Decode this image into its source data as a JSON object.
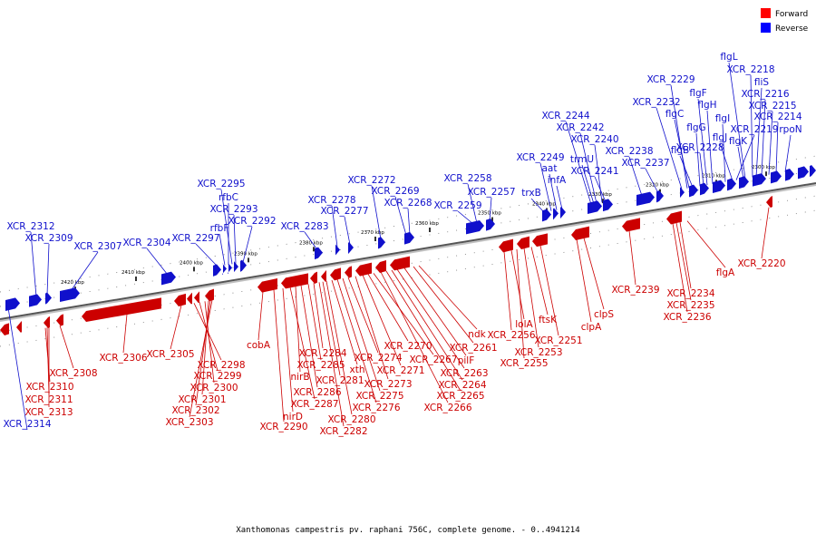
{
  "caption": "Xanthomonas campestris pv. raphani 756C, complete genome. - 0..4941214",
  "legend": {
    "forward": "Forward",
    "reverse": "Reverse",
    "forward_color": "#ff0000",
    "reverse_color": "#0000ff"
  },
  "ticks": [
    "2300 kbp",
    "2310 kbp",
    "2320 kbp",
    "2330 kbp",
    "2340 kbp",
    "2350 kbp",
    "2360 kbp",
    "2370 kbp",
    "2380 kbp",
    "2390 kbp",
    "2400 kbp",
    "2410 kbp",
    "2420 kbp"
  ],
  "reverse_genes": [
    "XCR_2314",
    "XCR_2312",
    "XCR_2309",
    "XCR_2307",
    "XCR_2304",
    "XCR_2297",
    "rfbF",
    "rfbC",
    "XCR_2295",
    "XCR_2293",
    "XCR_2292",
    "XCR_2283",
    "XCR_2278",
    "XCR_2277",
    "XCR_2272",
    "XCR_2269",
    "XCR_2268",
    "XCR_2259",
    "XCR_2258",
    "XCR_2257",
    "trxB",
    "XCR_2249",
    "aat",
    "infA",
    "XCR_2244",
    "trmU",
    "XCR_2242",
    "XCR_2240",
    "XCR_2241",
    "XCR_2238",
    "XCR_2237",
    "XCR_2232",
    "XCR_2229",
    "flgC",
    "flgB",
    "flgG",
    "XCR_2228",
    "flgF",
    "flgH",
    "flgI",
    "flgJ",
    "XCR_2219",
    "flgK",
    "flgL",
    "XCR_2218",
    "fliS",
    "XCR_2216",
    "XCR_2215",
    "XCR_2214",
    "rpoN"
  ],
  "forward_genes": [
    "XCR_2308",
    "XCR_2310",
    "XCR_2311",
    "XCR_2313",
    "XCR_2306",
    "XCR_2305",
    "XCR_2298",
    "XCR_2299",
    "XCR_2300",
    "XCR_2301",
    "XCR_2302",
    "XCR_2303",
    "cobA",
    "XCR_2290",
    "nirD",
    "XCR_2287",
    "nirB",
    "XCR_2286",
    "XCR_2285",
    "XCR_2284",
    "XCR_2282",
    "XCR_2281",
    "XCR_2280",
    "xth",
    "XCR_2276",
    "XCR_2275",
    "XCR_2274",
    "XCR_2273",
    "XCR_2271",
    "XCR_2270",
    "XCR_2267",
    "XCR_2266",
    "XCR_2265",
    "XCR_2264",
    "XCR_2263",
    "pilF",
    "XCR_2261",
    "ndk",
    "XCR_2256",
    "lolA",
    "XCR_2255",
    "XCR_2253",
    "ftsK",
    "XCR_2251",
    "clpA",
    "clpS",
    "XCR_2239",
    "XCR_2236",
    "XCR_2235",
    "XCR_2234",
    "flgA",
    "XCR_2220"
  ]
}
